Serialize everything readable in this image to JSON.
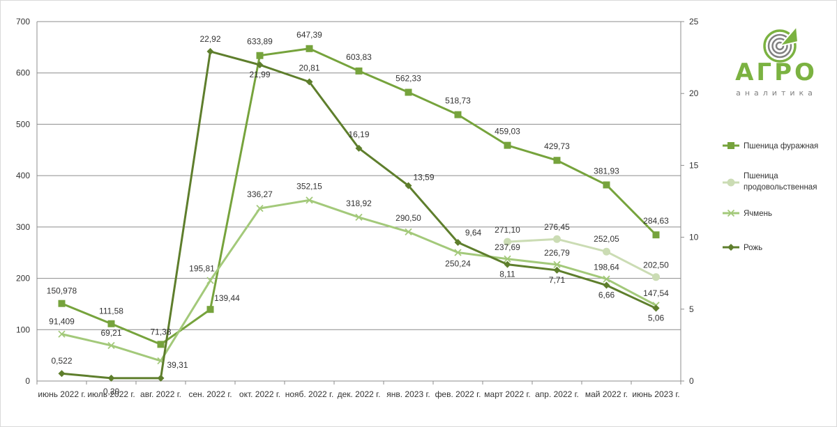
{
  "logo": {
    "title": "АГРО",
    "subtitle": "аналитика",
    "icon": "agro-analytics-logo-icon",
    "green": "#7bb241",
    "gray": "#808080"
  },
  "chart_data": {
    "type": "line",
    "categories": [
      "июнь 2022 г.",
      "июль 2022 г.",
      "авг. 2022 г.",
      "сен. 2022 г.",
      "окт. 2022 г.",
      "нояб. 2022 г.",
      "дек. 2022 г.",
      "янв. 2023 г.",
      "фев. 2022 г.",
      "март 2022 г.",
      "апр. 2022 г.",
      "май 2022 г.",
      "июнь 2023 г."
    ],
    "y_left": {
      "min": 0,
      "max": 700,
      "ticks": [
        "0",
        "100",
        "200",
        "300",
        "400",
        "500",
        "600",
        "700"
      ]
    },
    "y_right": {
      "min": 0,
      "max": 25,
      "ticks": [
        "0",
        "5",
        "10",
        "15",
        "20",
        "25"
      ]
    },
    "grid": "horizontal",
    "legend_position": "right",
    "series": [
      {
        "name": "Пшеница фуражная",
        "axis": "left",
        "color": "#76a33c",
        "marker": "square",
        "values": [
          150.978,
          111.58,
          71.38,
          139.44,
          633.89,
          647.39,
          603.83,
          562.33,
          518.73,
          459.03,
          429.73,
          381.93,
          284.63
        ],
        "labels": [
          "150,978",
          "111,58",
          "71,38",
          "139,44",
          "633,89",
          "647,39",
          "603,83",
          "562,33",
          "518,73",
          "459,03",
          "429,73",
          "381,93",
          "284,63"
        ]
      },
      {
        "name": "Пшеница продовольственная",
        "axis": "left",
        "color": "#cbdcb4",
        "marker": "circle",
        "values": [
          null,
          null,
          null,
          null,
          null,
          null,
          null,
          null,
          null,
          271.1,
          276.45,
          252.05,
          202.5
        ],
        "labels": [
          null,
          null,
          null,
          null,
          null,
          null,
          null,
          null,
          null,
          "271,10",
          "276,45",
          "252,05",
          "202,50"
        ]
      },
      {
        "name": "Ячмень",
        "axis": "left",
        "color": "#a3c97a",
        "marker": "x",
        "values": [
          91.409,
          69.21,
          39.31,
          195.81,
          336.27,
          352.15,
          318.92,
          290.5,
          250.24,
          237.69,
          226.79,
          198.64,
          147.54
        ],
        "labels": [
          "91,409",
          "69,21",
          "39,31",
          "195,81",
          "336,27",
          "352,15",
          "318,92",
          "290,50",
          "250,24",
          "237,69",
          "226,79",
          "198,64",
          "147,54"
        ]
      },
      {
        "name": "Рожь",
        "axis": "right",
        "color": "#5e7e2c",
        "marker": "diamond",
        "values": [
          0.522,
          0.2,
          0.2,
          22.92,
          21.99,
          20.81,
          16.19,
          13.59,
          9.64,
          8.11,
          7.71,
          6.66,
          5.06
        ],
        "labels": [
          "0,522",
          "0,20",
          null,
          "22,92",
          "21,99",
          "20,81",
          "16,19",
          "13,59",
          "9,64",
          "8,11",
          "7,71",
          "6,66",
          "5,06"
        ]
      }
    ]
  }
}
